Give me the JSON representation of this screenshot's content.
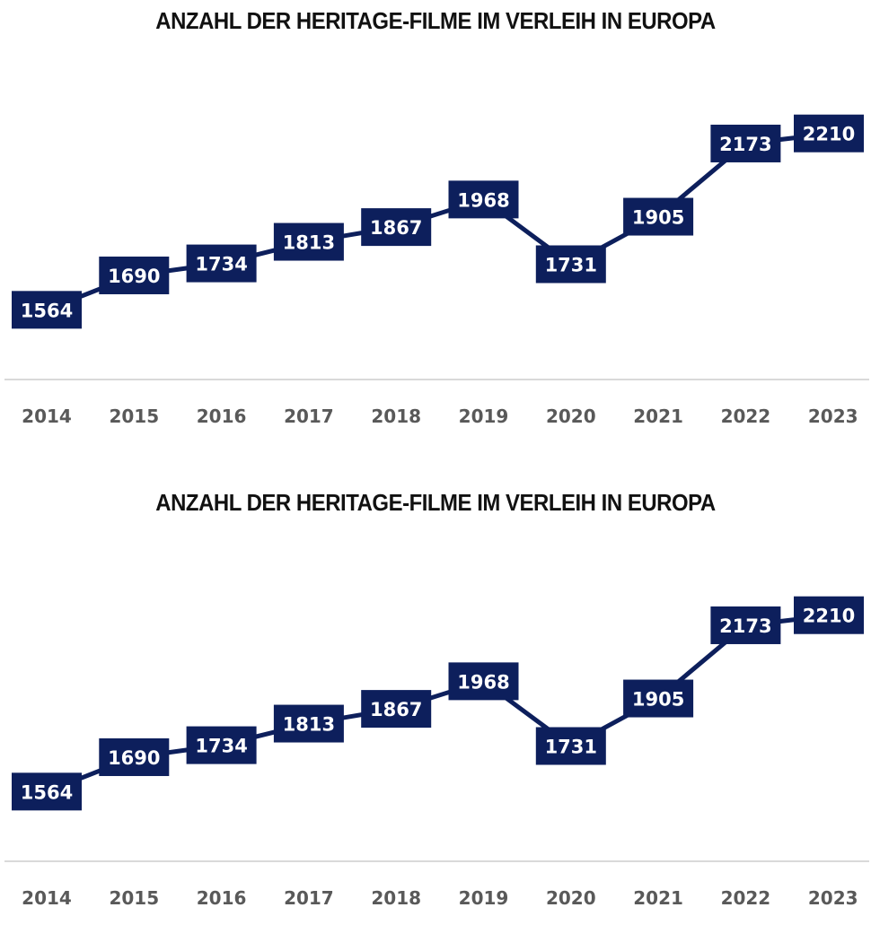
{
  "chart_data": [
    {
      "type": "line",
      "title": "ANZAHL DER HERITAGE-FILME IM VERLEIH IN EUROPA",
      "categories": [
        "2014",
        "2015",
        "2016",
        "2017",
        "2018",
        "2019",
        "2020",
        "2021",
        "2022",
        "2023"
      ],
      "values": [
        1564,
        1690,
        1734,
        1813,
        1867,
        1968,
        1731,
        1905,
        2173,
        2210
      ],
      "data_labels": [
        "1564",
        "1690",
        "1734",
        "1813",
        "1867",
        "1968",
        "1731",
        "1905",
        "2173",
        "2210"
      ],
      "ylim": [
        1000,
        2600
      ],
      "grid": false,
      "colors": {
        "line": "#0d1f5c",
        "label_box": "#0d1f5c",
        "label_text": "#ffffff",
        "axis": "#d9d9d9",
        "tick_text": "#595959"
      }
    },
    {
      "type": "line",
      "title": "ANZAHL DER HERITAGE-FILME IM VERLEIH IN EUROPA",
      "categories": [
        "2014",
        "2015",
        "2016",
        "2017",
        "2018",
        "2019",
        "2020",
        "2021",
        "2022",
        "2023"
      ],
      "values": [
        1564,
        1690,
        1734,
        1813,
        1867,
        1968,
        1731,
        1905,
        2173,
        2210
      ],
      "data_labels": [
        "1564",
        "1690",
        "1734",
        "1813",
        "1867",
        "1968",
        "1731",
        "1905",
        "2173",
        "2210"
      ],
      "ylim": [
        1000,
        2600
      ],
      "grid": false,
      "colors": {
        "line": "#0d1f5c",
        "label_box": "#0d1f5c",
        "label_text": "#ffffff",
        "axis": "#d9d9d9",
        "tick_text": "#595959"
      }
    }
  ]
}
